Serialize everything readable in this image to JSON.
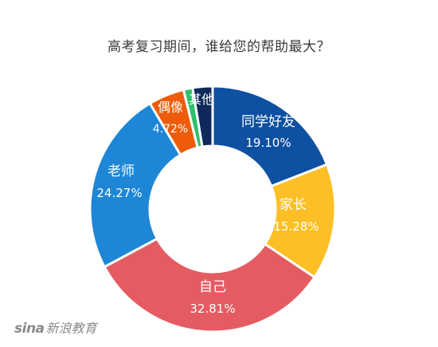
{
  "chart_data": {
    "type": "pie",
    "variant": "donut",
    "title": "高考复习期间，谁给您的帮助最大？",
    "slices": [
      {
        "label": "同学好友",
        "value": 19.1,
        "value_label": "19.10%",
        "color": "#0e50a2",
        "label_color": "#ffffff"
      },
      {
        "label": "家长",
        "value": 15.28,
        "value_label": "15.28%",
        "color": "#fdbf26",
        "label_color": "#ffffff"
      },
      {
        "label": "自己",
        "value": 32.81,
        "value_label": "32.81%",
        "color": "#e45c62",
        "label_color": "#ffffff"
      },
      {
        "label": "老师",
        "value": 24.27,
        "value_label": "24.27%",
        "color": "#1e86d6",
        "label_color": "#ffffff"
      },
      {
        "label": "偶像",
        "value": 4.72,
        "value_label": "4.72%",
        "color": "#ee5b0a",
        "label_color": "#ffffff"
      },
      {
        "label": "",
        "value": 1.2,
        "value_label": "",
        "color": "#2fbf6b",
        "label_color": "#ffffff"
      },
      {
        "label": "其他",
        "value": 2.62,
        "value_label": "",
        "color": "#0d2a5a",
        "label_color": "#ffffff"
      }
    ],
    "start_angle_deg": 0,
    "direction": "clockwise",
    "legend": "none"
  },
  "watermark": {
    "logo_text": "sina",
    "brand_text": "新浪教育"
  }
}
